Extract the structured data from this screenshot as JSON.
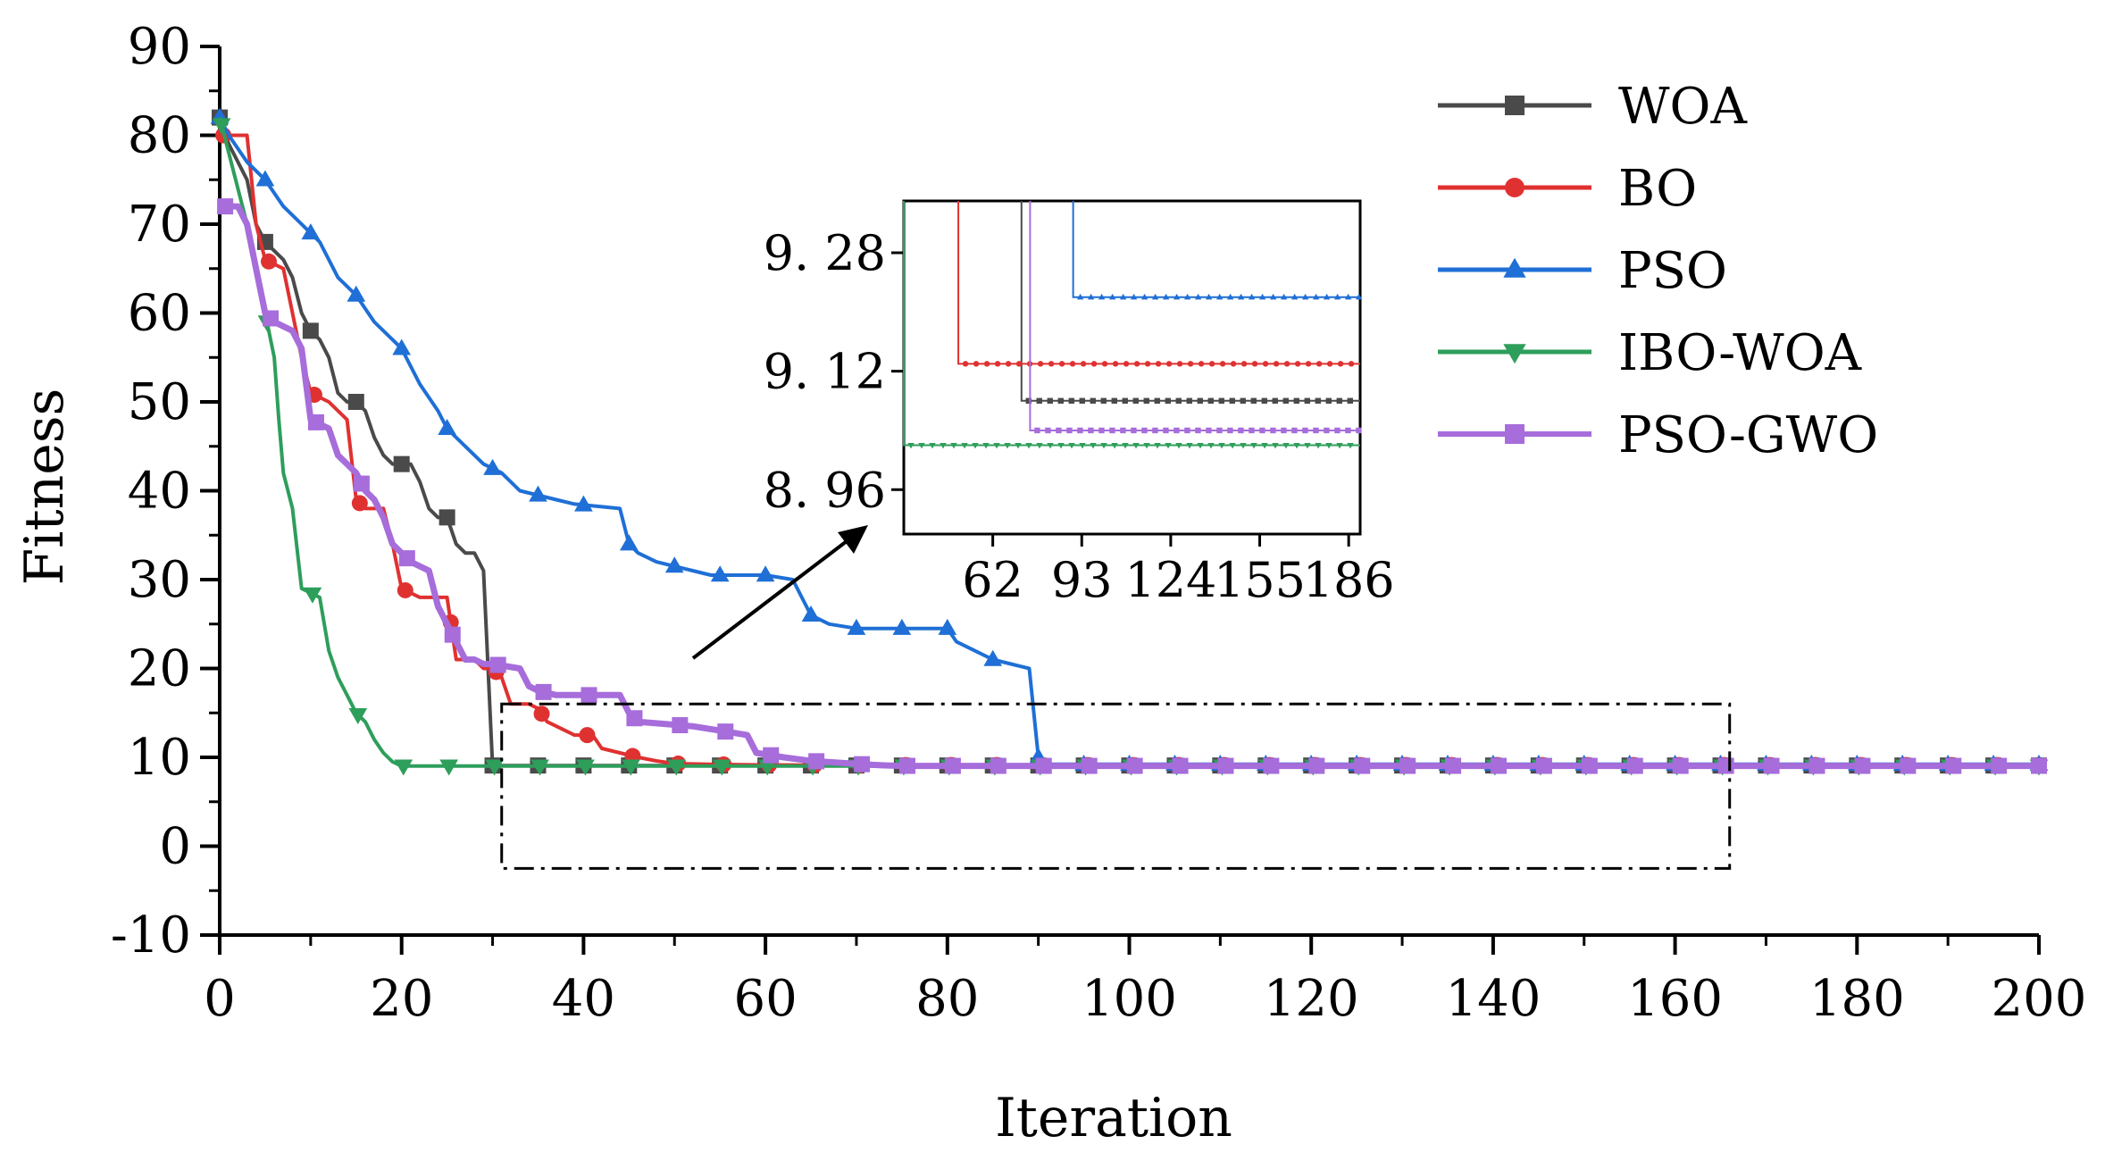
{
  "chart_data": {
    "type": "line",
    "title": "",
    "xlabel": "Iteration",
    "ylabel": "Fitness",
    "xlim": [
      0,
      200
    ],
    "ylim": [
      -10,
      90
    ],
    "xticks": [
      0,
      20,
      40,
      60,
      80,
      100,
      120,
      140,
      160,
      180,
      200
    ],
    "yticks": [
      -10,
      0,
      10,
      20,
      30,
      40,
      50,
      60,
      70,
      80,
      90
    ],
    "xtick_labels": [
      "0",
      "20",
      "40",
      "60",
      "80",
      "100",
      "120",
      "140",
      "160",
      "180",
      "200"
    ],
    "ytick_labels": [
      "-10",
      "0",
      "10",
      "20",
      "30",
      "40",
      "50",
      "60",
      "70",
      "80",
      "90"
    ],
    "legend_position": "top-right",
    "series": [
      {
        "name": "WOA",
        "color": "#4a4a4a",
        "marker": "square",
        "points": [
          [
            0,
            82
          ],
          [
            1,
            79
          ],
          [
            3,
            75
          ],
          [
            4,
            70
          ],
          [
            5,
            68
          ],
          [
            7,
            66
          ],
          [
            8,
            64
          ],
          [
            9,
            60
          ],
          [
            10,
            58
          ],
          [
            11,
            57
          ],
          [
            12,
            55
          ],
          [
            13,
            51
          ],
          [
            14,
            50
          ],
          [
            15,
            50
          ],
          [
            16,
            49
          ],
          [
            17,
            46
          ],
          [
            18,
            44
          ],
          [
            19,
            43
          ],
          [
            21,
            43
          ],
          [
            22,
            41
          ],
          [
            23,
            38
          ],
          [
            24,
            37
          ],
          [
            25,
            37
          ],
          [
            26,
            34
          ],
          [
            27,
            33
          ],
          [
            28,
            33
          ],
          [
            29,
            31
          ],
          [
            29.5,
            20
          ],
          [
            30,
            9.08
          ],
          [
            200,
            9.08
          ]
        ]
      },
      {
        "name": "BO",
        "color": "#e03131",
        "marker": "circle",
        "points": [
          [
            0,
            80
          ],
          [
            1,
            80
          ],
          [
            2,
            80
          ],
          [
            3,
            80
          ],
          [
            4,
            70
          ],
          [
            5,
            66
          ],
          [
            7,
            65
          ],
          [
            8,
            60
          ],
          [
            9,
            55
          ],
          [
            10,
            51
          ],
          [
            12,
            50
          ],
          [
            13,
            49
          ],
          [
            14,
            48
          ],
          [
            15,
            39
          ],
          [
            16,
            38
          ],
          [
            18,
            38
          ],
          [
            19,
            34
          ],
          [
            20,
            29
          ],
          [
            22,
            28
          ],
          [
            23,
            28
          ],
          [
            24,
            28
          ],
          [
            25,
            28
          ],
          [
            26,
            21
          ],
          [
            28,
            21
          ],
          [
            29,
            20
          ],
          [
            30,
            20
          ],
          [
            31,
            19
          ],
          [
            32,
            16
          ],
          [
            34,
            16
          ],
          [
            35,
            15.5
          ],
          [
            36,
            14
          ],
          [
            38,
            13
          ],
          [
            39,
            12.5
          ],
          [
            41,
            12.5
          ],
          [
            42,
            11
          ],
          [
            44,
            10.5
          ],
          [
            46,
            10
          ],
          [
            48,
            9.6
          ],
          [
            50,
            9.3
          ],
          [
            55,
            9.2
          ],
          [
            60,
            9.15
          ],
          [
            65,
            9.13
          ],
          [
            200,
            9.13
          ]
        ]
      },
      {
        "name": "PSO",
        "color": "#1f6fd6",
        "marker": "triangle-up",
        "points": [
          [
            0,
            82
          ],
          [
            1,
            80
          ],
          [
            3,
            77
          ],
          [
            5,
            75
          ],
          [
            7,
            72
          ],
          [
            9,
            70
          ],
          [
            11,
            68
          ],
          [
            13,
            64
          ],
          [
            15,
            62
          ],
          [
            17,
            59
          ],
          [
            19,
            57
          ],
          [
            20,
            56
          ],
          [
            22,
            52
          ],
          [
            24,
            49
          ],
          [
            25,
            47
          ],
          [
            27,
            45
          ],
          [
            29,
            43
          ],
          [
            31,
            42
          ],
          [
            33,
            40
          ],
          [
            35,
            39.5
          ],
          [
            37,
            39
          ],
          [
            39,
            38.5
          ],
          [
            44,
            38
          ],
          [
            45,
            34
          ],
          [
            46,
            33
          ],
          [
            48,
            32
          ],
          [
            50,
            31.5
          ],
          [
            52,
            31
          ],
          [
            54,
            30.5
          ],
          [
            56,
            30.5
          ],
          [
            60,
            30.5
          ],
          [
            63,
            30
          ],
          [
            64,
            28
          ],
          [
            65,
            26
          ],
          [
            67,
            25
          ],
          [
            70,
            24.5
          ],
          [
            80,
            24.5
          ],
          [
            81,
            23
          ],
          [
            83,
            22
          ],
          [
            85,
            21
          ],
          [
            87,
            20.5
          ],
          [
            89,
            20
          ],
          [
            90,
            10
          ],
          [
            90.5,
            9.22
          ],
          [
            200,
            9.22
          ]
        ]
      },
      {
        "name": "IBO-WOA",
        "color": "#2e9e5b",
        "marker": "triangle-down",
        "points": [
          [
            0,
            82
          ],
          [
            1,
            78
          ],
          [
            3,
            70
          ],
          [
            4,
            65
          ],
          [
            5,
            60
          ],
          [
            6,
            55
          ],
          [
            6.5,
            48
          ],
          [
            7,
            42
          ],
          [
            8,
            38
          ],
          [
            9,
            29
          ],
          [
            10,
            28.5
          ],
          [
            11,
            28
          ],
          [
            12,
            22
          ],
          [
            13,
            19
          ],
          [
            14,
            17
          ],
          [
            15,
            15
          ],
          [
            16,
            14
          ],
          [
            17,
            12
          ],
          [
            18,
            10.5
          ],
          [
            19,
            9.5
          ],
          [
            20,
            9.02
          ],
          [
            200,
            9.02
          ]
        ]
      },
      {
        "name": "PSO-GWO",
        "color": "#a66ddb",
        "marker": "square",
        "points": [
          [
            0,
            72
          ],
          [
            2,
            72
          ],
          [
            3,
            70
          ],
          [
            4,
            65
          ],
          [
            5,
            60
          ],
          [
            6,
            59
          ],
          [
            8,
            58
          ],
          [
            9,
            56
          ],
          [
            10,
            48
          ],
          [
            12,
            47
          ],
          [
            13,
            44
          ],
          [
            14,
            43
          ],
          [
            15,
            42
          ],
          [
            16,
            40
          ],
          [
            17,
            39
          ],
          [
            18,
            37
          ],
          [
            19,
            34
          ],
          [
            20,
            33
          ],
          [
            21,
            32
          ],
          [
            23,
            31
          ],
          [
            24,
            27
          ],
          [
            25,
            25
          ],
          [
            26,
            23
          ],
          [
            27,
            21
          ],
          [
            28,
            21
          ],
          [
            29,
            20.5
          ],
          [
            30,
            20.5
          ],
          [
            33,
            20
          ],
          [
            34,
            18
          ],
          [
            35,
            17.5
          ],
          [
            37,
            17
          ],
          [
            44,
            17
          ],
          [
            45,
            15
          ],
          [
            46,
            14
          ],
          [
            52,
            13.5
          ],
          [
            55,
            13
          ],
          [
            58,
            12.5
          ],
          [
            59,
            10.5
          ],
          [
            62,
            10
          ],
          [
            65,
            9.6
          ],
          [
            68,
            9.4
          ],
          [
            71,
            9.2
          ],
          [
            73,
            9.1
          ],
          [
            75,
            9.04
          ],
          [
            200,
            9.04
          ]
        ]
      }
    ],
    "inset": {
      "xticks": [
        62,
        93,
        124,
        155,
        186
      ],
      "xtick_labels": [
        "62",
        "93",
        "124",
        "155",
        "186"
      ],
      "yticks": [
        8.96,
        9.12,
        9.28
      ],
      "ytick_labels": [
        "8. 96",
        "9. 12",
        "9. 28"
      ],
      "xlim": [
        31,
        190
      ],
      "ylim": [
        8.9,
        9.35
      ],
      "levels": [
        {
          "name": "WOA",
          "drop_x": 72,
          "value": 9.08
        },
        {
          "name": "BO",
          "drop_x": 50,
          "value": 9.13
        },
        {
          "name": "PSO",
          "drop_x": 90,
          "value": 9.22
        },
        {
          "name": "IBO-WOA",
          "drop_x": 31,
          "value": 9.02
        },
        {
          "name": "PSO-GWO",
          "drop_x": 75,
          "value": 9.04
        }
      ]
    },
    "zoom_box": {
      "x_range": [
        31,
        166
      ],
      "y_range": [
        -2.5,
        16
      ]
    }
  }
}
